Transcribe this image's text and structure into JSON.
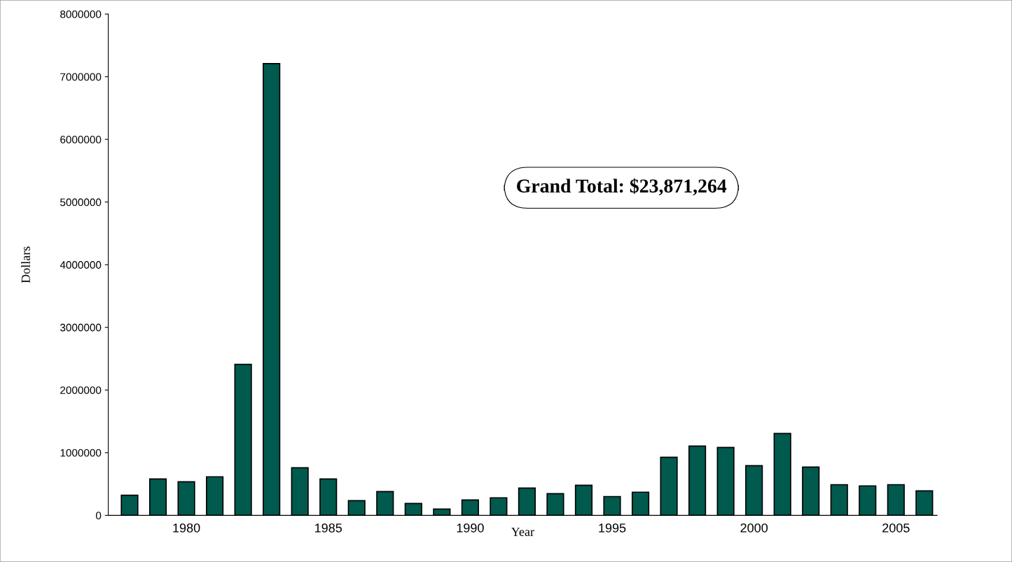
{
  "chart_data": {
    "type": "bar",
    "xlabel": "Year",
    "ylabel": "Dollars",
    "x": [
      1978,
      1979,
      1980,
      1981,
      1982,
      1983,
      1984,
      1985,
      1986,
      1987,
      1988,
      1989,
      1990,
      1991,
      1992,
      1993,
      1994,
      1995,
      1996,
      1997,
      1998,
      1999,
      2000,
      2001,
      2002,
      2003,
      2004,
      2005,
      2006
    ],
    "series": [
      {
        "color": "#005a4e",
        "values": [
          320000,
          580000,
          536000,
          615000,
          2410000,
          7210000,
          760000,
          580000,
          235000,
          380000,
          190000,
          100000,
          246000,
          280000,
          436000,
          346000,
          480000,
          300000,
          370000,
          927000,
          1106000,
          1084000,
          793000,
          1307000,
          771000,
          490000,
          470000,
          490000,
          390000
        ]
      }
    ],
    "xlim": [
      1977.25,
      2006.45
    ],
    "xticks": [
      1980,
      1985,
      1990,
      1995,
      2000,
      2005
    ],
    "ylim": [
      0,
      8000000
    ],
    "yticks": [
      0,
      1000000,
      2000000,
      3000000,
      4000000,
      5000000,
      6000000,
      7000000,
      8000000
    ],
    "annotations": [
      "Grand Total: $23,871,264"
    ],
    "grid": false,
    "legend": false
  }
}
